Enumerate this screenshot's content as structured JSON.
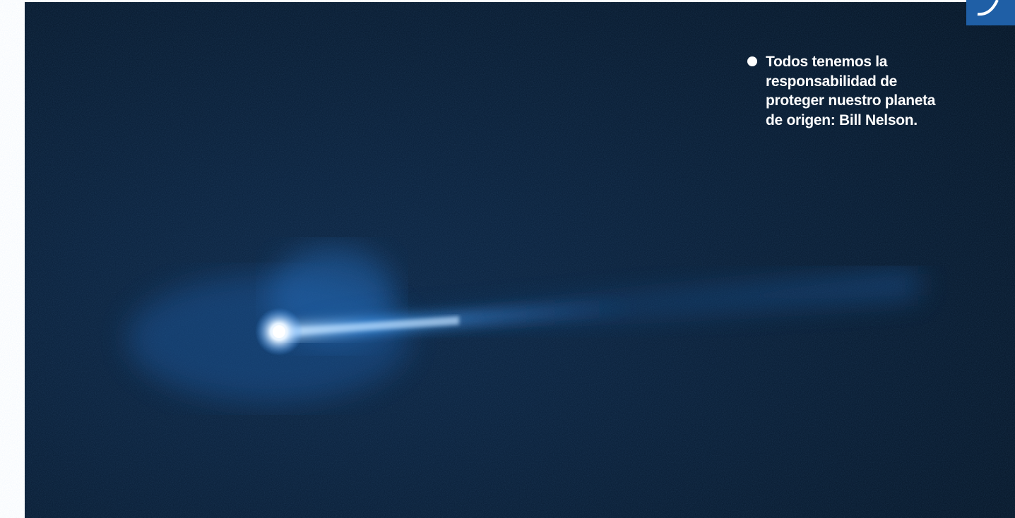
{
  "caption": {
    "lines": [
      "Todos tenemos la",
      "responsabilidad de",
      "proteger nuestro planeta",
      "de origen: Bill Nelson."
    ]
  }
}
